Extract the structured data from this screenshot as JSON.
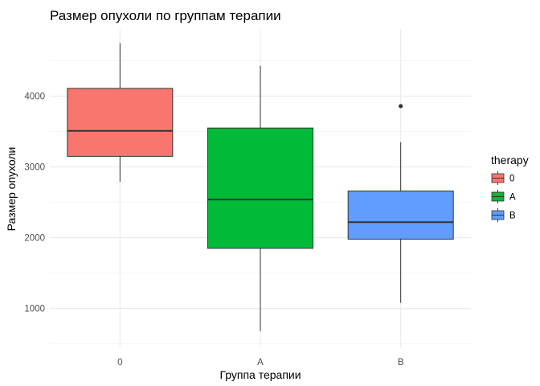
{
  "chart_data": {
    "type": "boxplot",
    "title": "Размер опухоли по группам терапии",
    "xlabel": "Группа терапии",
    "ylabel": "Размер опухоли",
    "ylim": [
      450,
      4950
    ],
    "yticks": [
      1000,
      2000,
      3000,
      4000
    ],
    "grid": true,
    "legend": {
      "title": "therapy",
      "position": "right"
    },
    "categories": [
      "0",
      "A",
      "B"
    ],
    "series": [
      {
        "name": "0",
        "color": "#F8766D",
        "whisker_low": 2790,
        "q1": 3150,
        "median": 3510,
        "q3": 4110,
        "whisker_high": 4750,
        "outliers": []
      },
      {
        "name": "A",
        "color": "#00BA38",
        "whisker_low": 680,
        "q1": 1850,
        "median": 2540,
        "q3": 3550,
        "whisker_high": 4430,
        "outliers": []
      },
      {
        "name": "B",
        "color": "#619CFF",
        "whisker_low": 1080,
        "q1": 1980,
        "median": 2220,
        "q3": 2660,
        "whisker_high": 3350,
        "outliers": [
          3860
        ]
      }
    ]
  }
}
